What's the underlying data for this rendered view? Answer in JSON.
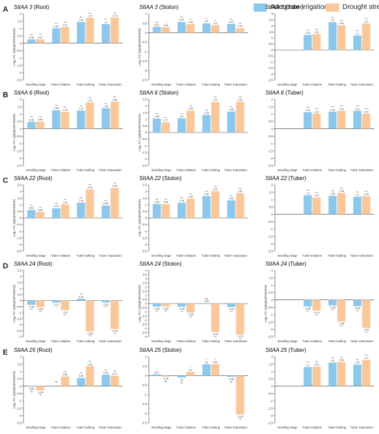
{
  "legend": {
    "irrigation_label": "Adequate irrigation",
    "drought_label": "Drought stress",
    "irrigation_color": "#8dc8ec",
    "drought_color": "#f9c79a"
  },
  "chart_data": [
    {
      "type": "bar",
      "letter": "A",
      "gene": "StIAA 3",
      "tissue": "(Root)",
      "ylabel": "Log₂ FC (Qinghu9/Atlantic)",
      "ylim": [
        -2.5,
        2.0
      ],
      "yticks": [
        -2.5,
        -2,
        -1.5,
        -1,
        -0.5,
        0,
        0.5,
        1,
        1.5,
        2
      ],
      "categories": [
        "Seedling stage",
        "Tuber initiation",
        "Tuber bulking",
        "Tuber maturation"
      ],
      "series": [
        {
          "name": "Adequate irrigation",
          "values": [
            0.26,
            1.02,
            1.44,
            1.3
          ],
          "labels": [
            "0.26",
            "1.02",
            "1.44",
            "1.3"
          ],
          "sig": [
            "***",
            "***",
            "***",
            "***"
          ]
        },
        {
          "name": "Drought stress",
          "values": [
            0.27,
            1.11,
            1.72,
            1.74
          ],
          "labels": [
            "0.27",
            "1.11",
            "1.72",
            "1.74"
          ],
          "sig": [
            "***",
            "***",
            "***",
            "***"
          ]
        }
      ]
    },
    {
      "type": "bar",
      "letter": "",
      "gene": "StIAA 3",
      "tissue": "(Stolon)",
      "ylabel": "Log₂ FC (Qinghu9/Atlantic)",
      "ylim": [
        -2.5,
        1.0
      ],
      "yticks": [
        -2.5,
        -2,
        -1.5,
        -1,
        -0.5,
        0,
        0.5,
        1
      ],
      "categories": [
        "Seedling stage",
        "Tuber initiation",
        "Tuber bulking",
        "Tuber maturation"
      ],
      "series": [
        {
          "name": "Adequate irrigation",
          "values": [
            0.31,
            0.57,
            0.5,
            0.47
          ],
          "labels": [
            "0.31",
            "0.57",
            "0.5",
            "0.47"
          ],
          "sig": [
            "ns",
            "***",
            "**",
            "***"
          ]
        },
        {
          "name": "Drought stress",
          "values": [
            0.29,
            0.45,
            0.4,
            0.24
          ],
          "labels": [
            "0.29",
            "0.45",
            "0.4",
            "0.24"
          ],
          "sig": [
            "*",
            "**",
            "**",
            "***"
          ]
        }
      ]
    },
    {
      "type": "bar",
      "letter": "",
      "gene": "StIAA 3",
      "tissue": "(Tuber)",
      "ylabel": "",
      "ylim": [
        -2.5,
        3.0
      ],
      "yticks": [
        -2.5,
        -2,
        -1.5,
        -1,
        -0.5,
        0,
        0.5,
        1,
        1.5,
        2,
        2.5,
        3
      ],
      "categories": [
        "Seedling stage",
        "Tuber initiation",
        "Tuber bulking",
        "Tuber maturation"
      ],
      "series": [
        {
          "name": "Adequate irrigation",
          "values": [
            null,
            1.25,
            2.3,
            1.2
          ],
          "labels": [
            "",
            "1.25",
            "2.3",
            "1.2"
          ],
          "sig": [
            "",
            "***",
            "***",
            "***"
          ]
        },
        {
          "name": "Drought stress",
          "values": [
            null,
            1.31,
            2.04,
            2.2
          ],
          "labels": [
            "",
            "1.31",
            "2.04",
            "2.2"
          ],
          "sig": [
            "",
            "***",
            "***",
            "***"
          ]
        }
      ]
    },
    {
      "type": "bar",
      "letter": "B",
      "gene": "StIAA 6",
      "tissue": "(Root)",
      "ylabel": "Log₂ FC (Qinghu9/Atlantic)",
      "ylim": [
        -2.5,
        2.0
      ],
      "yticks": [
        -2.5,
        -2,
        -1.5,
        -1,
        -0.5,
        0,
        0.5,
        1,
        1.5,
        2
      ],
      "categories": [
        "Seedling stage",
        "Tuber initiation",
        "Tuber bulking",
        "Tuber maturation"
      ],
      "series": [
        {
          "name": "Adequate irrigation",
          "values": [
            0.48,
            1.26,
            1.24,
            1.39
          ],
          "labels": [
            "0.48",
            "1.26",
            "1.24",
            "1.39"
          ],
          "sig": [
            "***",
            "***",
            "***",
            "***"
          ]
        },
        {
          "name": "Drought stress",
          "values": [
            0.49,
            1.14,
            1.79,
            1.84
          ],
          "labels": [
            "0.49",
            "1.14",
            "1.79",
            "1.84"
          ],
          "sig": [
            "***",
            "***",
            "***",
            "***"
          ]
        }
      ]
    },
    {
      "type": "bar",
      "letter": "",
      "gene": "StIAA 6",
      "tissue": "(Stolon)",
      "ylabel": "Log₂ FC (Qinghu9/Atlantic)",
      "ylim": [
        -2.5,
        2.5
      ],
      "yticks": [
        -2.5,
        -2,
        -1.5,
        -1,
        -0.5,
        0,
        0.5,
        1,
        1.5,
        2,
        2.5
      ],
      "categories": [
        "Seedling stage",
        "Tuber initiation",
        "Tuber bulking",
        "Tuber maturation"
      ],
      "series": [
        {
          "name": "Adequate irrigation",
          "values": [
            1.05,
            1.07,
            1.33,
            1.58
          ],
          "labels": [
            "1.05",
            "1.07",
            "1.33",
            "1.58"
          ],
          "sig": [
            "***",
            "***",
            "***",
            "***"
          ]
        },
        {
          "name": "Drought stress",
          "values": [
            0.77,
            1.65,
            2.3,
            2.32
          ],
          "labels": [
            "0.77",
            "1.65",
            "2.3",
            "2.32"
          ],
          "sig": [
            "***",
            "***",
            "***",
            "***"
          ]
        }
      ]
    },
    {
      "type": "bar",
      "letter": "",
      "gene": "StIAA 6",
      "tissue": "(Tuber)",
      "ylabel": "",
      "ylim": [
        -2.5,
        2.0
      ],
      "yticks": [
        -2.5,
        -2,
        -1.5,
        -1,
        -0.5,
        0,
        0.5,
        1,
        1.5,
        2
      ],
      "categories": [
        "Seedling stage",
        "Tuber initiation",
        "Tuber bulking",
        "Tuber maturation"
      ],
      "series": [
        {
          "name": "Adequate irrigation",
          "values": [
            null,
            1.13,
            1.16,
            1.21
          ],
          "labels": [
            "",
            "1.13",
            "1.16",
            "1.21"
          ],
          "sig": [
            "",
            "***",
            "***",
            "***"
          ]
        },
        {
          "name": "Drought stress",
          "values": [
            null,
            1.02,
            1.21,
            1.02
          ],
          "labels": [
            "",
            "1.02",
            "1.21",
            "1.02"
          ],
          "sig": [
            "",
            "***",
            "***",
            "***"
          ]
        }
      ]
    },
    {
      "type": "bar",
      "letter": "C",
      "gene": "StIAA 22",
      "tissue": "(Root)",
      "ylabel": "Log₂ FC (Qinghu9/Atlantic)",
      "ylim": [
        -2.5,
        2.5
      ],
      "yticks": [
        -2.5,
        -2,
        -1.5,
        -1,
        -0.5,
        0,
        0.5,
        1,
        1.5,
        2,
        2.5
      ],
      "categories": [
        "Seedling stage",
        "Tuber initiation",
        "Tuber bulking",
        "Tuber maturation"
      ],
      "series": [
        {
          "name": "Adequate irrigation",
          "values": [
            0.61,
            0.74,
            1.16,
            0.95
          ],
          "labels": [
            "0.61",
            "0.74",
            "1.16",
            "0.95"
          ],
          "sig": [
            "***",
            "***",
            "***",
            "***"
          ]
        },
        {
          "name": "Drought stress",
          "values": [
            0.46,
            1.02,
            2.15,
            2.28
          ],
          "labels": [
            "0.46",
            "1.02",
            "2.15",
            "2.28"
          ],
          "sig": [
            "***",
            "***",
            "***",
            "***"
          ]
        }
      ]
    },
    {
      "type": "bar",
      "letter": "",
      "gene": "StIAA 22",
      "tissue": "(Stolon)",
      "ylabel": "Log₂ FC (Qinghu9/Atlantic)",
      "ylim": [
        -2.5,
        2.5
      ],
      "yticks": [
        -2.5,
        -2,
        -1.5,
        -1,
        -0.5,
        0,
        0.5,
        1,
        1.5,
        2,
        2.5
      ],
      "categories": [
        "Seedling stage",
        "Tuber initiation",
        "Tuber bulking",
        "Tuber maturation"
      ],
      "series": [
        {
          "name": "Adequate irrigation",
          "values": [
            1.06,
            1.16,
            1.66,
            1.33
          ],
          "labels": [
            "1.06",
            "1.16",
            "1.66",
            "1.33"
          ],
          "sig": [
            "***",
            "***",
            "***",
            "***"
          ]
        },
        {
          "name": "Drought stress",
          "values": [
            1.05,
            1.46,
            2.02,
            1.87
          ],
          "labels": [
            "1.05",
            "1.46",
            "2.02",
            "1.87"
          ],
          "sig": [
            "***",
            "***",
            "***",
            "***"
          ]
        }
      ]
    },
    {
      "type": "bar",
      "letter": "",
      "gene": "StIAA 22",
      "tissue": "(Tuber)",
      "ylabel": "",
      "ylim": [
        -2.5,
        2.0
      ],
      "yticks": [
        -2.5,
        -2,
        -1.5,
        -1,
        -0.5,
        0,
        0.5,
        1,
        1.5,
        2
      ],
      "categories": [
        "Seedling stage",
        "Tuber initiation",
        "Tuber bulking",
        "Tuber maturation"
      ],
      "series": [
        {
          "name": "Adequate irrigation",
          "values": [
            null,
            1.3,
            1.26,
            1.2
          ],
          "labels": [
            "",
            "1.3",
            "1.26",
            "1.2"
          ],
          "sig": [
            "",
            "***",
            "***",
            "***"
          ]
        },
        {
          "name": "Drought stress",
          "values": [
            null,
            1.14,
            1.46,
            1.24
          ],
          "labels": [
            "",
            "1.14",
            "1.46",
            "1.24"
          ],
          "sig": [
            "",
            "***",
            "***",
            "***"
          ]
        }
      ]
    },
    {
      "type": "bar",
      "letter": "D",
      "gene": "StIAA 24",
      "tissue": "(Root)",
      "ylabel": "Log₂ FC (Qinghu9/Atlantic)",
      "ylim": [
        -3.0,
        2.5
      ],
      "yticks": [
        -3,
        -2.5,
        -2,
        -1.5,
        -1,
        -0.5,
        0,
        0.5,
        1,
        1.5,
        2,
        2.5
      ],
      "categories": [
        "Seedling stage",
        "Tuber initiation",
        "Tuber bulking",
        "Tuber maturation"
      ],
      "series": [
        {
          "name": "Adequate irrigation",
          "values": [
            -0.35,
            -0.17,
            0.15,
            -0.16
          ],
          "labels": [
            "-0.35",
            "-0.17",
            "0.15",
            "-0.16"
          ],
          "sig": [
            "***",
            "*",
            "***",
            "***"
          ]
        },
        {
          "name": "Drought stress",
          "values": [
            -0.56,
            -0.8,
            -2.56,
            -2.36
          ],
          "labels": [
            "-0.56",
            "-0.8",
            "-2.56",
            "-2.36"
          ],
          "sig": [
            "***",
            "***",
            "***",
            "***"
          ]
        }
      ]
    },
    {
      "type": "bar",
      "letter": "",
      "gene": "StIAA 24",
      "tissue": "(Stolon)",
      "ylabel": "Log₂ FC (Qinghu9/Atlantic)",
      "ylim": [
        -4.0,
        4.0
      ],
      "yticks": [
        -4,
        -3.5,
        -3,
        -2.5,
        -2,
        -1.5,
        -1,
        -0.5,
        0,
        0.5,
        1,
        1.5,
        2,
        2.5,
        3,
        3.5,
        4
      ],
      "categories": [
        "Seedling stage",
        "Tuber initiation",
        "Tuber bulking",
        "Tuber maturation"
      ],
      "series": [
        {
          "name": "Adequate irrigation",
          "values": [
            -0.36,
            -0.38,
            0.06,
            -0.42
          ],
          "labels": [
            "-0.36",
            "-0.38",
            "0.06",
            "-0.42"
          ],
          "sig": [
            "***",
            "***",
            "ns",
            "***"
          ]
        },
        {
          "name": "Drought stress",
          "values": [
            -0.36,
            -1.08,
            -3.45,
            -3.75
          ],
          "labels": [
            "-0.36",
            "-1.08",
            "-3.45",
            "-3.75"
          ],
          "sig": [
            "***",
            "***",
            "***",
            "***"
          ]
        }
      ]
    },
    {
      "type": "bar",
      "letter": "",
      "gene": "StIAA 24",
      "tissue": "(Tuber)",
      "ylabel": "Log₂ FC (Qinghu9/Atlantic)",
      "ylim": [
        -2.5,
        2.0
      ],
      "yticks": [
        -2.5,
        -2,
        -1.5,
        -1,
        -0.5,
        0,
        0.5,
        1,
        1.5,
        2
      ],
      "categories": [
        "Seedling stage",
        "Tuber initiation",
        "Tuber bulking",
        "Tuber maturation"
      ],
      "series": [
        {
          "name": "Adequate irrigation",
          "values": [
            null,
            -0.45,
            -0.38,
            -0.43
          ],
          "labels": [
            "",
            "-0.45",
            "-0.38",
            "-0.43"
          ],
          "sig": [
            "",
            "***",
            "***",
            "***"
          ]
        },
        {
          "name": "Drought stress",
          "values": [
            null,
            -0.73,
            -1.46,
            -1.89
          ],
          "labels": [
            "",
            "-0.73",
            "-1.46",
            "-1.89"
          ],
          "sig": [
            "",
            "***",
            "***",
            "***"
          ]
        }
      ]
    },
    {
      "type": "bar",
      "letter": "E",
      "gene": "StIAA 25",
      "tissue": "(Root)",
      "ylabel": "Log₂ FC (Qinghu9/Atlantic)",
      "ylim": [
        -2.5,
        2.0
      ],
      "yticks": [
        -2.5,
        -2,
        -1.5,
        -1,
        -0.5,
        0,
        0.5,
        1,
        1.5,
        2
      ],
      "categories": [
        "Seedling stage",
        "Tuber initiation",
        "Tuber bulking",
        "Tuber maturation"
      ],
      "series": [
        {
          "name": "Adequate irrigation",
          "values": [
            -0.03,
            0.0,
            0.56,
            0.78
          ],
          "labels": [
            "-0.03",
            "",
            "0.56",
            "0.78"
          ],
          "sig": [
            "ns",
            "ns",
            "***",
            "***"
          ]
        },
        {
          "name": "Drought stress",
          "values": [
            -0.28,
            0.66,
            1.35,
            0.71
          ],
          "labels": [
            "-0.28",
            "0.66",
            "1.35",
            "0.71"
          ],
          "sig": [
            "***",
            "***",
            "***",
            "***"
          ]
        }
      ]
    },
    {
      "type": "bar",
      "letter": "",
      "gene": "StIAA 25",
      "tissue": "(Stolon)",
      "ylabel": "",
      "ylim": [
        -2.5,
        1.0
      ],
      "yticks": [
        -2.5,
        -2,
        -1.5,
        -1,
        -0.5,
        0,
        0.5,
        1
      ],
      "categories": [
        "Seedling stage",
        "Tuber initiation",
        "Tuber bulking",
        "Tuber maturation"
      ],
      "series": [
        {
          "name": "Adequate irrigation",
          "values": [
            0.07,
            -0.1,
            0.6,
            -0.06
          ],
          "labels": [
            "0.07",
            "-0.1",
            "0.6",
            "-0.06"
          ],
          "sig": [
            "*",
            "ns",
            "*",
            "ns"
          ]
        },
        {
          "name": "Drought stress",
          "values": [
            -0.05,
            0.2,
            0.61,
            -2.05
          ],
          "labels": [
            "-0.05",
            "0.2",
            "0.61",
            "-2.05"
          ],
          "sig": [
            "ns",
            "*",
            "*",
            "***"
          ]
        }
      ]
    },
    {
      "type": "bar",
      "letter": "",
      "gene": "StIAA 25",
      "tissue": "(Tuber)",
      "ylabel": "",
      "ylim": [
        -2.5,
        2.0
      ],
      "yticks": [
        -2.5,
        -2,
        -1.5,
        -1,
        -0.5,
        0,
        0.5,
        1,
        1.5,
        2
      ],
      "categories": [
        "Seedling stage",
        "Tuber initiation",
        "Tuber bulking",
        "Tuber maturation"
      ],
      "series": [
        {
          "name": "Adequate irrigation",
          "values": [
            null,
            1.3,
            1.6,
            1.47
          ],
          "labels": [
            "",
            "1.3",
            "1.6",
            "1.47"
          ],
          "sig": [
            "",
            "***",
            "***",
            "***"
          ]
        },
        {
          "name": "Drought stress",
          "values": [
            null,
            1.33,
            1.65,
            1.77
          ],
          "labels": [
            "",
            "1.33",
            "1.65",
            "1.77"
          ],
          "sig": [
            "",
            "***",
            "***",
            "***"
          ]
        }
      ]
    }
  ]
}
